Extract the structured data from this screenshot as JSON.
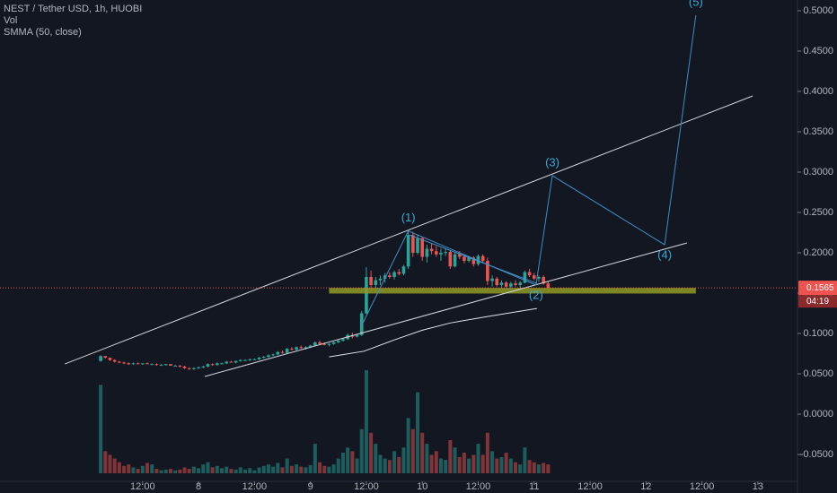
{
  "chart_data": {
    "type": "candlestick",
    "title": "NEST / Tether USD, 1h, HUOBI",
    "indicators": [
      "Vol",
      "SMMA (50, close)"
    ],
    "up_color": "#26a69a",
    "down_color": "#ef5350",
    "background": "#131722",
    "xlim": [
      -42.6,
      128.5
    ],
    "ylim": [
      -0.0833,
      0.5133
    ],
    "xticks": [
      {
        "value": -12,
        "label": "12:00"
      },
      {
        "value": 0,
        "label": "8"
      },
      {
        "value": 12,
        "label": "12:00"
      },
      {
        "value": 24,
        "label": "9"
      },
      {
        "value": 36,
        "label": "12:00"
      },
      {
        "value": 48,
        "label": "10"
      },
      {
        "value": 60,
        "label": "12:00"
      },
      {
        "value": 72,
        "label": "11"
      },
      {
        "value": 84,
        "label": "12:00"
      },
      {
        "value": 96,
        "label": "12"
      },
      {
        "value": 108,
        "label": "12:00"
      },
      {
        "value": 120,
        "label": "13"
      }
    ],
    "yticks": [
      {
        "value": 0.5,
        "label": "0.5000"
      },
      {
        "value": 0.45,
        "label": "0.4500"
      },
      {
        "value": 0.4,
        "label": "0.4000"
      },
      {
        "value": 0.35,
        "label": "0.3500"
      },
      {
        "value": 0.3,
        "label": "0.3000"
      },
      {
        "value": 0.25,
        "label": "0.2500"
      },
      {
        "value": 0.2,
        "label": "0.2000"
      },
      {
        "value": 0.15,
        "label": "0.1500"
      },
      {
        "value": 0.1,
        "label": "0.1000"
      },
      {
        "value": 0.05,
        "label": "0.0500"
      },
      {
        "value": 0,
        "label": "0.0000"
      },
      {
        "value": -0.05,
        "label": "-0.0500"
      }
    ],
    "candles": [
      [
        -21,
        0.066,
        0.073,
        0.065,
        0.072,
        120
      ],
      [
        -20,
        0.072,
        0.072,
        0.069,
        0.07,
        30
      ],
      [
        -19,
        0.07,
        0.07,
        0.066,
        0.067,
        25
      ],
      [
        -18,
        0.067,
        0.068,
        0.064,
        0.065,
        20
      ],
      [
        -17,
        0.065,
        0.066,
        0.063,
        0.064,
        15
      ],
      [
        -16,
        0.064,
        0.065,
        0.062,
        0.063,
        10
      ],
      [
        -15,
        0.063,
        0.064,
        0.061,
        0.062,
        12
      ],
      [
        -14,
        0.062,
        0.064,
        0.061,
        0.063,
        8
      ],
      [
        -13,
        0.063,
        0.064,
        0.062,
        0.062,
        6
      ],
      [
        -12,
        0.062,
        0.063,
        0.061,
        0.063,
        10
      ],
      [
        -11,
        0.063,
        0.064,
        0.062,
        0.062,
        14
      ],
      [
        -10,
        0.062,
        0.063,
        0.061,
        0.062,
        12
      ],
      [
        -9,
        0.062,
        0.063,
        0.06,
        0.061,
        6
      ],
      [
        -8,
        0.061,
        0.062,
        0.06,
        0.061,
        4
      ],
      [
        -7,
        0.061,
        0.062,
        0.06,
        0.062,
        5
      ],
      [
        -6,
        0.062,
        0.062,
        0.06,
        0.06,
        6
      ],
      [
        -5,
        0.06,
        0.061,
        0.059,
        0.06,
        4
      ],
      [
        -4,
        0.06,
        0.061,
        0.058,
        0.059,
        5
      ],
      [
        -3,
        0.059,
        0.06,
        0.056,
        0.057,
        8
      ],
      [
        -2,
        0.057,
        0.058,
        0.055,
        0.056,
        6
      ],
      [
        -1,
        0.056,
        0.058,
        0.055,
        0.057,
        9
      ],
      [
        0,
        0.057,
        0.059,
        0.056,
        0.058,
        7
      ],
      [
        1,
        0.058,
        0.06,
        0.057,
        0.059,
        12
      ],
      [
        2,
        0.059,
        0.063,
        0.058,
        0.062,
        15
      ],
      [
        3,
        0.062,
        0.063,
        0.06,
        0.061,
        8
      ],
      [
        4,
        0.061,
        0.064,
        0.06,
        0.063,
        10
      ],
      [
        5,
        0.063,
        0.064,
        0.062,
        0.063,
        7
      ],
      [
        6,
        0.063,
        0.066,
        0.062,
        0.065,
        9
      ],
      [
        7,
        0.065,
        0.066,
        0.064,
        0.064,
        6
      ],
      [
        8,
        0.064,
        0.066,
        0.063,
        0.066,
        5
      ],
      [
        9,
        0.066,
        0.068,
        0.065,
        0.067,
        8
      ],
      [
        10,
        0.067,
        0.068,
        0.066,
        0.067,
        5
      ],
      [
        11,
        0.067,
        0.069,
        0.066,
        0.068,
        7
      ],
      [
        12,
        0.068,
        0.069,
        0.067,
        0.068,
        4
      ],
      [
        13,
        0.068,
        0.071,
        0.067,
        0.07,
        8
      ],
      [
        14,
        0.07,
        0.072,
        0.069,
        0.071,
        10
      ],
      [
        15,
        0.071,
        0.074,
        0.07,
        0.073,
        12
      ],
      [
        16,
        0.073,
        0.075,
        0.072,
        0.074,
        9
      ],
      [
        17,
        0.074,
        0.078,
        0.073,
        0.077,
        14
      ],
      [
        18,
        0.077,
        0.079,
        0.075,
        0.076,
        8
      ],
      [
        19,
        0.076,
        0.082,
        0.075,
        0.081,
        20
      ],
      [
        20,
        0.081,
        0.083,
        0.079,
        0.08,
        10
      ],
      [
        21,
        0.08,
        0.084,
        0.079,
        0.083,
        12
      ],
      [
        22,
        0.083,
        0.085,
        0.081,
        0.082,
        9
      ],
      [
        23,
        0.082,
        0.084,
        0.08,
        0.083,
        8
      ],
      [
        24,
        0.083,
        0.086,
        0.082,
        0.085,
        11
      ],
      [
        25,
        0.085,
        0.09,
        0.084,
        0.089,
        40
      ],
      [
        26,
        0.089,
        0.091,
        0.086,
        0.087,
        15
      ],
      [
        27,
        0.087,
        0.089,
        0.085,
        0.086,
        10
      ],
      [
        28,
        0.086,
        0.088,
        0.084,
        0.087,
        9
      ],
      [
        29,
        0.087,
        0.09,
        0.086,
        0.089,
        12
      ],
      [
        30,
        0.089,
        0.092,
        0.088,
        0.091,
        20
      ],
      [
        31,
        0.091,
        0.094,
        0.09,
        0.093,
        28
      ],
      [
        32,
        0.093,
        0.1,
        0.092,
        0.098,
        35
      ],
      [
        33,
        0.098,
        0.101,
        0.094,
        0.096,
        30
      ],
      [
        34,
        0.096,
        0.099,
        0.095,
        0.098,
        20
      ],
      [
        35,
        0.098,
        0.128,
        0.097,
        0.125,
        60
      ],
      [
        36,
        0.125,
        0.182,
        0.124,
        0.17,
        140
      ],
      [
        37,
        0.17,
        0.178,
        0.155,
        0.16,
        55
      ],
      [
        38,
        0.16,
        0.17,
        0.155,
        0.166,
        40
      ],
      [
        39,
        0.166,
        0.172,
        0.16,
        0.168,
        25
      ],
      [
        40,
        0.168,
        0.175,
        0.163,
        0.172,
        20
      ],
      [
        41,
        0.172,
        0.176,
        0.168,
        0.17,
        18
      ],
      [
        42,
        0.17,
        0.178,
        0.167,
        0.176,
        30
      ],
      [
        43,
        0.176,
        0.18,
        0.172,
        0.174,
        22
      ],
      [
        44,
        0.174,
        0.185,
        0.172,
        0.183,
        35
      ],
      [
        45,
        0.183,
        0.228,
        0.18,
        0.222,
        75
      ],
      [
        46,
        0.222,
        0.226,
        0.195,
        0.2,
        60
      ],
      [
        47,
        0.2,
        0.222,
        0.198,
        0.218,
        110
      ],
      [
        48,
        0.218,
        0.22,
        0.19,
        0.195,
        55
      ],
      [
        49,
        0.195,
        0.21,
        0.188,
        0.205,
        40
      ],
      [
        50,
        0.205,
        0.212,
        0.198,
        0.202,
        25
      ],
      [
        51,
        0.202,
        0.208,
        0.195,
        0.198,
        30
      ],
      [
        52,
        0.198,
        0.205,
        0.19,
        0.2,
        20
      ],
      [
        53,
        0.2,
        0.205,
        0.196,
        0.201,
        18
      ],
      [
        54,
        0.201,
        0.203,
        0.18,
        0.183,
        45
      ],
      [
        55,
        0.183,
        0.2,
        0.182,
        0.198,
        35
      ],
      [
        56,
        0.198,
        0.202,
        0.192,
        0.195,
        22
      ],
      [
        57,
        0.195,
        0.198,
        0.187,
        0.19,
        28
      ],
      [
        58,
        0.19,
        0.196,
        0.188,
        0.194,
        20
      ],
      [
        59,
        0.194,
        0.196,
        0.183,
        0.186,
        25
      ],
      [
        60,
        0.186,
        0.198,
        0.184,
        0.196,
        40
      ],
      [
        61,
        0.196,
        0.198,
        0.188,
        0.19,
        25
      ],
      [
        62,
        0.19,
        0.194,
        0.16,
        0.165,
        55
      ],
      [
        63,
        0.165,
        0.172,
        0.158,
        0.168,
        30
      ],
      [
        64,
        0.168,
        0.17,
        0.158,
        0.16,
        20
      ],
      [
        65,
        0.16,
        0.166,
        0.156,
        0.163,
        22
      ],
      [
        66,
        0.163,
        0.165,
        0.157,
        0.158,
        28
      ],
      [
        67,
        0.158,
        0.164,
        0.155,
        0.162,
        20
      ],
      [
        68,
        0.162,
        0.166,
        0.158,
        0.16,
        15
      ],
      [
        69,
        0.16,
        0.165,
        0.157,
        0.163,
        12
      ],
      [
        70,
        0.163,
        0.178,
        0.162,
        0.176,
        35
      ],
      [
        71,
        0.176,
        0.18,
        0.17,
        0.172,
        18
      ],
      [
        72,
        0.172,
        0.175,
        0.166,
        0.168,
        15
      ],
      [
        73,
        0.168,
        0.172,
        0.164,
        0.17,
        12
      ],
      [
        74,
        0.17,
        0.172,
        0.16,
        0.162,
        14
      ],
      [
        75,
        0.162,
        0.165,
        0.155,
        0.1565,
        12
      ]
    ],
    "smma": {
      "color": "#e0e3eb",
      "points": [
        [
          28,
          0.071
        ],
        [
          35.5,
          0.078
        ],
        [
          42,
          0.092
        ],
        [
          48,
          0.104
        ],
        [
          54,
          0.113
        ],
        [
          62,
          0.121
        ],
        [
          72.6,
          0.131
        ]
      ]
    },
    "trendlines": [
      {
        "color": "#d1d4dc",
        "points": [
          [
            -28.7,
            0.0622
          ],
          [
            118.9,
            0.3944
          ]
        ]
      },
      {
        "color": "#d1d4dc",
        "points": [
          [
            1.35,
            0.0467
          ],
          [
            104.8,
            0.2122
          ]
        ]
      },
      {
        "color": "#4a90c8",
        "points": [
          [
            45.3,
            0.222
          ],
          [
            72.6,
            0.162
          ]
        ]
      }
    ],
    "zone": {
      "color": "#8f9a22",
      "x": [
        28,
        106.7
      ],
      "y": [
        0.1495,
        0.1565
      ]
    },
    "wave_color": "#3d8fc7",
    "wave_label_color": "#3ba9d6",
    "wave_path": [
      [
        35,
        0.11
      ],
      [
        45,
        0.227
      ],
      [
        72.4,
        0.16
      ],
      [
        75.9,
        0.2956
      ],
      [
        100,
        0.21
      ],
      [
        106.7,
        0.4944
      ]
    ],
    "wave_labels": [
      "(1)",
      "(2)",
      "(3)",
      "(4)",
      "(5)"
    ],
    "last_price": {
      "value": 0.1565,
      "label": "0.1565"
    },
    "countdown": "04:19"
  }
}
